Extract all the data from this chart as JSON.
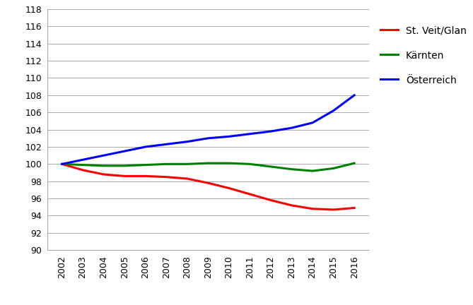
{
  "years": [
    2002,
    2003,
    2004,
    2005,
    2006,
    2007,
    2008,
    2009,
    2010,
    2011,
    2012,
    2013,
    2014,
    2015,
    2016
  ],
  "st_veit": [
    100.0,
    99.3,
    98.8,
    98.6,
    98.6,
    98.5,
    98.3,
    97.8,
    97.2,
    96.5,
    95.8,
    95.2,
    94.8,
    94.7,
    94.9
  ],
  "kaernten": [
    100.0,
    99.9,
    99.8,
    99.8,
    99.9,
    100.0,
    100.0,
    100.1,
    100.1,
    100.0,
    99.7,
    99.4,
    99.2,
    99.5,
    100.1
  ],
  "oesterreich": [
    100.0,
    100.5,
    101.0,
    101.5,
    102.0,
    102.3,
    102.6,
    103.0,
    103.2,
    103.5,
    103.8,
    104.2,
    104.8,
    106.2,
    108.0
  ],
  "colors": {
    "st_veit": "#FF0000",
    "kaernten": "#008000",
    "oesterreich": "#0000FF"
  },
  "legend_labels": [
    "St. Veit/Glan",
    "Kärnten",
    "Österreich"
  ],
  "ylim": [
    90,
    118
  ],
  "yticks": [
    90,
    92,
    94,
    96,
    98,
    100,
    102,
    104,
    106,
    108,
    110,
    112,
    114,
    116,
    118
  ],
  "line_width": 2.2,
  "background_color": "#FFFFFF",
  "grid_color": "#AAAAAA",
  "font_size_ticks": 9,
  "font_size_legend": 10
}
